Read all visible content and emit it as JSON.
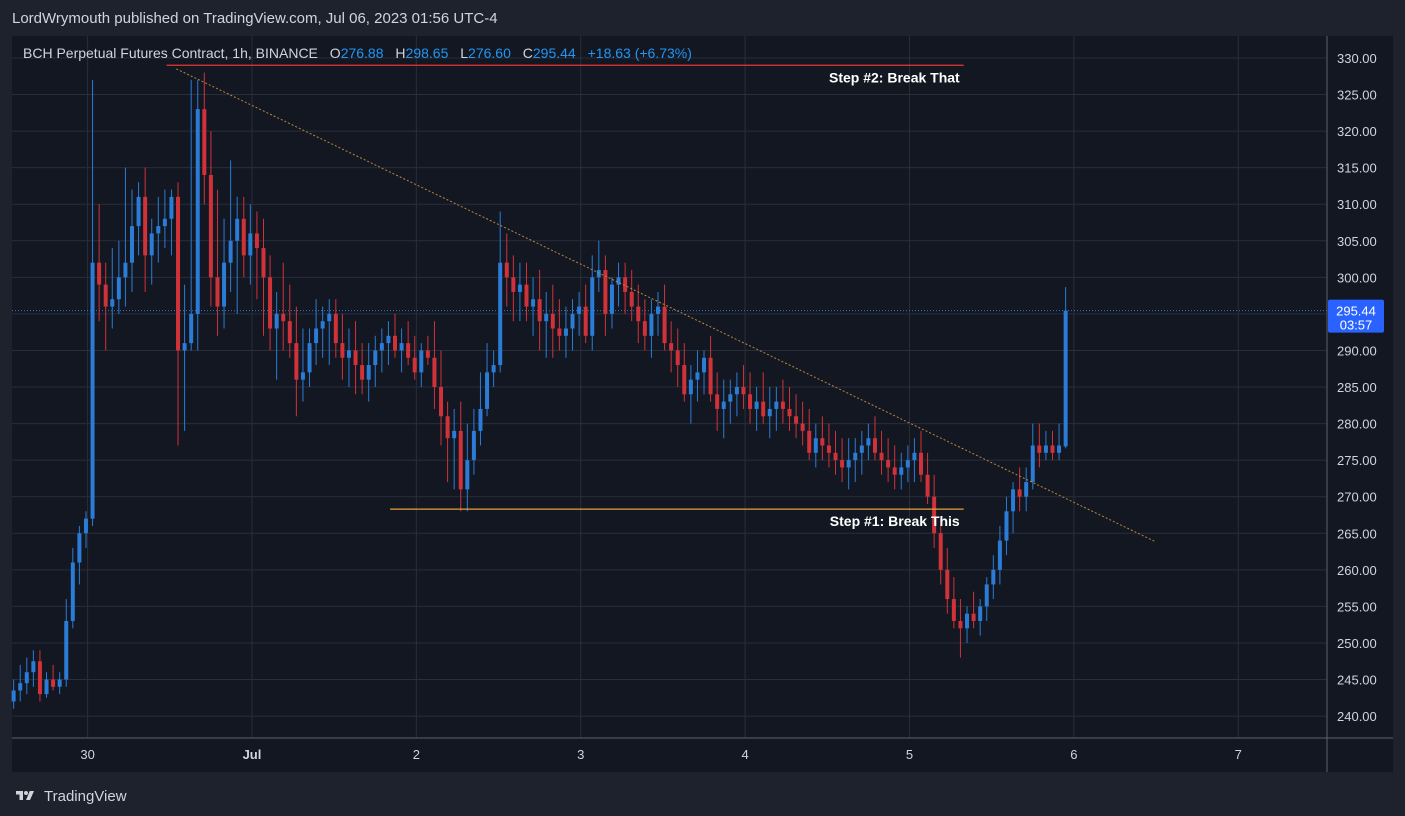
{
  "header": {
    "published_by": "LordWrymouth published on TradingView.com, Jul 06, 2023 01:56 UTC-4"
  },
  "legend": {
    "symbol": "BCH Perpetual Futures Contract, 1h, BINANCE",
    "o_label": "O",
    "o_value": "276.88",
    "h_label": "H",
    "h_value": "298.65",
    "l_label": "L",
    "l_value": "276.60",
    "c_label": "C",
    "c_value": "295.44",
    "change": "+18.63 (+6.73%)"
  },
  "price_badge": {
    "price": "295.44",
    "countdown": "03:57"
  },
  "footer": {
    "brand": "TradingView"
  },
  "colors": {
    "up": "#2a7cd6",
    "down": "#d0323a",
    "trend": "#b8893a",
    "support": "#e5a23b",
    "resistance": "#e53935",
    "background": "#131722",
    "grid": "#2a2e39"
  },
  "chart_data": {
    "type": "candlestick",
    "symbol": "BCH Perpetual Futures Contract",
    "interval": "1h",
    "exchange": "BINANCE",
    "ylim": [
      237,
      333
    ],
    "y_ticks": [
      "330.00",
      "325.00",
      "320.00",
      "315.00",
      "310.00",
      "305.00",
      "300.00",
      "295.00",
      "290.00",
      "285.00",
      "280.00",
      "275.00",
      "270.00",
      "265.00",
      "260.00",
      "255.00",
      "250.00",
      "245.00",
      "240.00"
    ],
    "x_ticks": [
      {
        "label": "30",
        "day": 0
      },
      {
        "label": "Jul",
        "day": 1
      },
      {
        "label": "2",
        "day": 2
      },
      {
        "label": "3",
        "day": 3
      },
      {
        "label": "4",
        "day": 4
      },
      {
        "label": "5",
        "day": 5
      },
      {
        "label": "6",
        "day": 6
      },
      {
        "label": "7",
        "day": 7
      }
    ],
    "x_range_days": [
      -0.46,
      7.54
    ],
    "last_price": 295.44,
    "candles": [
      [
        -0.45,
        242,
        245,
        241,
        243.5
      ],
      [
        -0.41,
        243.5,
        247,
        242,
        244.5
      ],
      [
        -0.37,
        244.5,
        248,
        243,
        246
      ],
      [
        -0.33,
        246,
        249,
        244,
        247.5
      ],
      [
        -0.29,
        247.5,
        249,
        242,
        243
      ],
      [
        -0.25,
        243,
        246,
        242.5,
        245
      ],
      [
        -0.21,
        245,
        247,
        243.5,
        244
      ],
      [
        -0.17,
        244,
        246,
        243,
        245
      ],
      [
        -0.13,
        245,
        256,
        244,
        253
      ],
      [
        -0.09,
        253,
        263,
        252,
        261
      ],
      [
        -0.05,
        261,
        266,
        258,
        265
      ],
      [
        -0.01,
        265,
        268,
        263,
        267
      ],
      [
        0.03,
        267,
        327,
        266,
        302
      ],
      [
        0.07,
        302,
        310,
        294,
        299
      ],
      [
        0.11,
        299,
        302,
        290,
        296
      ],
      [
        0.15,
        296,
        304,
        293,
        297
      ],
      [
        0.19,
        297,
        305,
        295,
        300
      ],
      [
        0.23,
        300,
        315,
        296,
        302
      ],
      [
        0.27,
        302,
        312,
        298,
        307
      ],
      [
        0.31,
        307,
        313,
        303,
        311
      ],
      [
        0.35,
        311,
        315,
        298,
        303
      ],
      [
        0.39,
        303,
        308,
        299,
        306
      ],
      [
        0.43,
        306,
        311,
        302,
        307
      ],
      [
        0.47,
        307,
        312,
        304,
        308
      ],
      [
        0.51,
        308,
        312,
        303,
        311
      ],
      [
        0.55,
        311,
        313,
        277,
        290
      ],
      [
        0.59,
        290,
        299,
        279,
        291
      ],
      [
        0.63,
        291,
        327,
        290,
        295
      ],
      [
        0.67,
        295,
        327,
        290,
        323
      ],
      [
        0.71,
        323,
        328,
        310,
        314
      ],
      [
        0.75,
        314,
        320,
        296,
        300
      ],
      [
        0.79,
        300,
        312,
        292,
        296
      ],
      [
        0.83,
        296,
        308,
        293,
        302
      ],
      [
        0.87,
        302,
        316,
        298,
        305
      ],
      [
        0.91,
        305,
        311,
        295,
        308
      ],
      [
        0.95,
        308,
        311,
        300,
        303
      ],
      [
        0.99,
        303,
        310,
        299,
        306
      ],
      [
        1.03,
        306,
        309,
        297,
        304
      ],
      [
        1.07,
        304,
        308,
        292,
        300
      ],
      [
        1.11,
        300,
        303,
        290,
        293
      ],
      [
        1.15,
        293,
        298,
        286,
        295
      ],
      [
        1.19,
        295,
        302,
        290,
        294
      ],
      [
        1.23,
        294,
        299,
        289,
        291
      ],
      [
        1.27,
        291,
        296,
        281,
        286
      ],
      [
        1.31,
        286,
        293,
        283,
        287
      ],
      [
        1.35,
        287,
        293,
        285,
        291
      ],
      [
        1.39,
        291,
        297,
        288,
        293
      ],
      [
        1.43,
        293,
        296,
        289,
        294
      ],
      [
        1.47,
        294,
        297,
        288,
        295
      ],
      [
        1.51,
        295,
        297,
        289,
        291
      ],
      [
        1.55,
        291,
        295,
        286,
        289
      ],
      [
        1.59,
        289,
        293,
        285,
        290
      ],
      [
        1.63,
        290,
        294,
        284,
        288
      ],
      [
        1.67,
        288,
        291,
        284,
        286
      ],
      [
        1.71,
        286,
        291,
        283,
        288
      ],
      [
        1.75,
        288,
        292,
        285,
        290
      ],
      [
        1.79,
        290,
        293,
        287,
        291
      ],
      [
        1.83,
        291,
        294,
        288,
        292
      ],
      [
        1.87,
        292,
        295,
        289,
        290
      ],
      [
        1.91,
        290,
        293,
        287,
        291
      ],
      [
        1.95,
        291,
        294,
        288,
        289
      ],
      [
        1.99,
        289,
        292,
        286,
        287
      ],
      [
        2.03,
        287,
        291,
        285,
        290
      ],
      [
        2.07,
        290,
        292,
        288,
        289
      ],
      [
        2.11,
        289,
        294,
        282,
        285
      ],
      [
        2.15,
        285,
        290,
        277,
        281
      ],
      [
        2.19,
        281,
        283,
        272,
        278
      ],
      [
        2.23,
        278,
        282,
        271,
        279
      ],
      [
        2.27,
        279,
        283,
        268,
        271
      ],
      [
        2.31,
        271,
        280,
        268,
        275
      ],
      [
        2.35,
        275,
        282,
        273,
        279
      ],
      [
        2.39,
        279,
        287,
        277,
        282
      ],
      [
        2.43,
        282,
        291,
        281,
        287
      ],
      [
        2.47,
        287,
        290,
        285,
        288
      ],
      [
        2.51,
        288,
        309,
        287,
        302
      ],
      [
        2.55,
        302,
        306,
        296,
        300
      ],
      [
        2.59,
        300,
        303,
        294,
        298
      ],
      [
        2.63,
        298,
        302,
        294,
        299
      ],
      [
        2.67,
        299,
        302,
        294,
        296
      ],
      [
        2.71,
        296,
        300,
        292,
        297
      ],
      [
        2.75,
        297,
        301,
        290,
        294
      ],
      [
        2.79,
        294,
        298,
        289,
        295
      ],
      [
        2.83,
        295,
        299,
        289,
        293
      ],
      [
        2.87,
        293,
        297,
        290,
        292
      ],
      [
        2.91,
        292,
        296,
        289,
        293
      ],
      [
        2.95,
        293,
        297,
        290,
        295
      ],
      [
        2.99,
        295,
        298,
        292,
        296
      ],
      [
        3.03,
        296,
        299,
        291,
        292
      ],
      [
        3.07,
        292,
        303,
        290,
        300
      ],
      [
        3.11,
        300,
        305,
        298,
        301
      ],
      [
        3.15,
        301,
        303,
        292,
        295
      ],
      [
        3.19,
        295,
        300,
        293,
        299
      ],
      [
        3.23,
        299,
        302,
        296,
        300
      ],
      [
        3.27,
        300,
        302,
        295,
        298
      ],
      [
        3.31,
        298,
        301,
        294,
        296
      ],
      [
        3.35,
        296,
        299,
        291,
        294
      ],
      [
        3.39,
        294,
        297,
        290,
        292
      ],
      [
        3.43,
        292,
        297,
        289,
        295
      ],
      [
        3.47,
        295,
        298,
        292,
        296
      ],
      [
        3.51,
        296,
        299,
        290,
        291
      ],
      [
        3.55,
        291,
        294,
        287,
        290
      ],
      [
        3.59,
        290,
        293,
        285,
        288
      ],
      [
        3.63,
        288,
        291,
        283,
        284
      ],
      [
        3.67,
        284,
        288,
        280,
        286
      ],
      [
        3.71,
        286,
        290,
        283,
        287
      ],
      [
        3.75,
        287,
        290,
        284,
        289
      ],
      [
        3.79,
        289,
        292,
        283,
        284
      ],
      [
        3.83,
        284,
        287,
        279,
        282
      ],
      [
        3.87,
        282,
        286,
        278,
        283
      ],
      [
        3.91,
        283,
        286,
        280,
        284
      ],
      [
        3.95,
        284,
        287,
        281,
        285
      ],
      [
        3.99,
        285,
        288,
        282,
        284
      ],
      [
        4.03,
        284,
        287,
        280,
        282
      ],
      [
        4.07,
        282,
        285,
        279,
        283
      ],
      [
        4.11,
        283,
        287,
        280,
        281
      ],
      [
        4.15,
        281,
        285,
        278,
        282
      ],
      [
        4.19,
        282,
        285,
        279,
        283
      ],
      [
        4.23,
        283,
        286,
        280,
        282
      ],
      [
        4.27,
        282,
        285,
        279,
        281
      ],
      [
        4.31,
        281,
        284,
        278,
        280
      ],
      [
        4.35,
        280,
        283,
        277,
        279
      ],
      [
        4.39,
        279,
        282,
        275,
        276
      ],
      [
        4.43,
        276,
        280,
        274,
        278
      ],
      [
        4.47,
        278,
        281,
        275,
        277
      ],
      [
        4.51,
        277,
        280,
        274,
        276
      ],
      [
        4.55,
        276,
        279,
        273,
        275
      ],
      [
        4.59,
        275,
        278,
        272,
        274
      ],
      [
        4.63,
        274,
        278,
        271,
        275
      ],
      [
        4.67,
        275,
        278,
        272,
        276
      ],
      [
        4.71,
        276,
        279,
        273,
        277
      ],
      [
        4.75,
        277,
        280,
        275,
        278
      ],
      [
        4.79,
        278,
        281,
        275,
        276
      ],
      [
        4.83,
        276,
        279,
        273,
        275
      ],
      [
        4.87,
        275,
        278,
        272,
        274
      ],
      [
        4.91,
        274,
        277,
        271,
        273
      ],
      [
        4.95,
        273,
        276,
        271,
        274
      ],
      [
        4.99,
        274,
        277,
        272,
        275
      ],
      [
        5.03,
        275,
        278,
        272,
        276
      ],
      [
        5.07,
        276,
        279,
        272,
        273
      ],
      [
        5.11,
        273,
        276,
        269,
        270
      ],
      [
        5.15,
        270,
        273,
        263,
        265
      ],
      [
        5.19,
        265,
        267,
        258,
        260
      ],
      [
        5.23,
        260,
        263,
        254,
        256
      ],
      [
        5.27,
        256,
        259,
        252,
        253
      ],
      [
        5.31,
        253,
        256,
        248,
        252
      ],
      [
        5.35,
        252,
        255,
        250,
        254
      ],
      [
        5.39,
        254,
        257,
        252,
        253
      ],
      [
        5.43,
        253,
        256,
        251,
        255
      ],
      [
        5.47,
        255,
        259,
        253,
        258
      ],
      [
        5.51,
        258,
        262,
        256,
        260
      ],
      [
        5.55,
        260,
        266,
        258,
        264
      ],
      [
        5.59,
        264,
        270,
        262,
        268
      ],
      [
        5.63,
        268,
        272,
        265,
        271
      ],
      [
        5.67,
        271,
        274,
        268,
        270
      ],
      [
        5.71,
        270,
        274,
        268,
        272
      ],
      [
        5.75,
        272,
        280,
        271,
        277
      ],
      [
        5.79,
        277,
        280,
        274,
        276
      ],
      [
        5.83,
        276,
        279,
        275,
        277
      ],
      [
        5.87,
        277,
        279,
        275,
        276
      ],
      [
        5.91,
        276,
        280,
        275,
        277
      ],
      [
        5.95,
        276.88,
        298.65,
        276.6,
        295.44
      ]
    ],
    "annotations": [
      {
        "text": "Step #2: Break That",
        "type": "resistance",
        "price": 329,
        "from_day": 0.48,
        "to_day": 5.33
      },
      {
        "text": "Step #1: Break This",
        "type": "support",
        "price": 268.3,
        "from_day": 1.84,
        "to_day": 5.33
      },
      {
        "text": "",
        "type": "trendline",
        "from": [
          0.54,
          328.5
        ],
        "to": [
          6.5,
          263.8
        ]
      }
    ]
  }
}
